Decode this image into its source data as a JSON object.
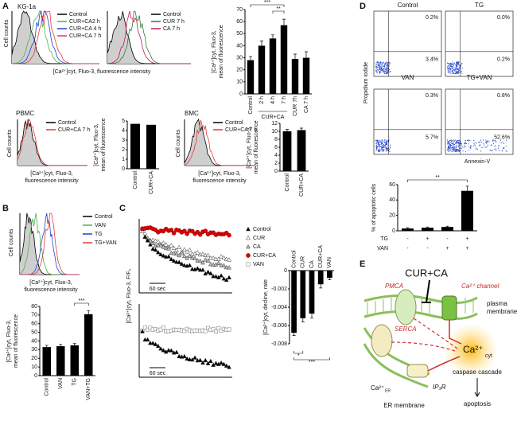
{
  "panels": {
    "A": {
      "label": "A",
      "cell_line": "KG-1a",
      "hist1_legend": [
        {
          "name": "Control",
          "color": "#000000"
        },
        {
          "name": "CUR+CA2 h",
          "color": "#4caf50"
        },
        {
          "name": "CUR+CA 4 h",
          "color": "#1f3fd0"
        },
        {
          "name": "CUR+CA 7 h",
          "color": "#e53935"
        }
      ],
      "hist2_legend": [
        {
          "name": "Control",
          "color": "#000000"
        },
        {
          "name": "CUR 7 h",
          "color": "#2e7d32"
        },
        {
          "name": "CA 7 h",
          "color": "#c2185b"
        }
      ],
      "y_label": "Cell counts",
      "x_label": "[Ca²⁺]cyt, Fluo-3, fluorescence intensity",
      "pbmc": {
        "title": "PBMC",
        "legend": [
          {
            "name": "Control",
            "color": "#000000"
          },
          {
            "name": "CUR+CA 7 h",
            "color": "#e53935"
          }
        ],
        "y_label": "Cell counts",
        "x_label": [
          "[Ca²⁺]cyt, Fluo-3,",
          "fluorescence intensity"
        ]
      },
      "bmc": {
        "title": "BMC",
        "legend": [
          {
            "name": "Control",
            "color": "#000000"
          },
          {
            "name": "CUR+CA 7 h",
            "color": "#e53935"
          }
        ],
        "y_label": "Cell counts",
        "x_label": [
          "[Ca²⁺]cyt, Fluo-3,",
          "fluorescence intensity"
        ]
      }
    },
    "B": {
      "label": "B",
      "legend": [
        {
          "name": "Control",
          "color": "#000000"
        },
        {
          "name": "VAN",
          "color": "#4caf50"
        },
        {
          "name": "TG",
          "color": "#1f3fd0"
        },
        {
          "name": "TG+VAN",
          "color": "#e53935"
        }
      ],
      "y_label": "Cell counts",
      "x_label": [
        "[Ca²⁺]cyt, Fluo-3,",
        "fluorescence intensity"
      ]
    },
    "C": {
      "label": "C",
      "legend": [
        {
          "name": "Control",
          "color": "#000000",
          "marker": "triangle-filled"
        },
        {
          "name": "CUR",
          "color": "#888888",
          "marker": "triangle-open"
        },
        {
          "name": "CA",
          "color": "#aaaaaa",
          "marker": "triangle-gray"
        },
        {
          "name": "CUR+CA",
          "color": "#e00000",
          "marker": "circle"
        },
        {
          "name": "VAN",
          "color": "#888888",
          "marker": "square-open"
        }
      ],
      "y_label": "[Ca²⁺]cyt, Fluo-3, F/F₀",
      "scale_label": "60 sec"
    },
    "D": {
      "label": "D",
      "plots": [
        {
          "title": "Control",
          "upper_right": "0.2%",
          "lower_right": "3.4%"
        },
        {
          "title": "TG",
          "upper_right": "0.0%",
          "lower_right": "0.2%"
        },
        {
          "title": "VAN",
          "upper_right": "0.3%",
          "lower_right": "5.7%"
        },
        {
          "title": "TG+VAN",
          "upper_right": "0.8%",
          "lower_right": "52.6%"
        }
      ],
      "y_label": "Propidium iodide",
      "x_label": "Annexin-V"
    },
    "E": {
      "label": "E",
      "drug": "CUR+CA",
      "pmca": "PMCA",
      "channel": "Ca²⁺ channel",
      "plasma_membrane": [
        "plasma",
        "membrane"
      ],
      "serca": "SERCA",
      "ca_cyt": "Ca²⁺",
      "cyt": "cyt",
      "caspase": "caspase cascade",
      "ca_er": "Ca²⁺",
      "er": "ER",
      "ip3r": "IP₃R",
      "er_membrane": "ER membrane",
      "apoptosis": "apoptosis"
    }
  },
  "chart_data": [
    {
      "type": "bar",
      "categories": [
        "Control",
        "2 h",
        "4 h",
        "7 h",
        "CUR 7h",
        "CA 7 h"
      ],
      "values": [
        28,
        40,
        46,
        57,
        29,
        30
      ],
      "errors": [
        3,
        4,
        3,
        5,
        4,
        5
      ],
      "color": "#000000",
      "ylim": [
        0,
        70
      ],
      "yticks": [
        0,
        10,
        20,
        30,
        40,
        50,
        60,
        70
      ],
      "ylabel": [
        "[Ca²⁺]cyt, Fluo-3,",
        "mean of fluorescence"
      ],
      "group_label": "CUR+CA",
      "annotations": [
        "***",
        "**"
      ]
    },
    {
      "type": "bar",
      "categories": [
        "Control",
        "CUR+CA"
      ],
      "values": [
        4.7,
        4.6
      ],
      "color": "#000000",
      "ylim": [
        0,
        5
      ],
      "yticks": [
        0,
        1,
        2,
        3,
        4,
        5
      ],
      "ylabel": [
        "[Ca²⁺]cyt, Fluo-3,",
        "mean of fluorescence"
      ]
    },
    {
      "type": "bar",
      "categories": [
        "Control",
        "CUR+CA"
      ],
      "values": [
        10,
        10.3
      ],
      "errors": [
        0.5,
        0.5
      ],
      "color": "#000000",
      "ylim": [
        0,
        12
      ],
      "yticks": [
        0,
        2,
        4,
        6,
        8,
        10,
        12
      ],
      "ylabel": [
        "[Ca²⁺]cyt, Fluo-3,",
        "mean of fluorescence"
      ]
    },
    {
      "type": "bar",
      "categories": [
        "Control",
        "VAN",
        "TG",
        "VAN+TG"
      ],
      "values": [
        33,
        34,
        35,
        71
      ],
      "errors": [
        2,
        2,
        2,
        4
      ],
      "color": "#000000",
      "ylim": [
        0,
        80
      ],
      "yticks": [
        0,
        10,
        20,
        30,
        40,
        50,
        60,
        70,
        80
      ],
      "ylabel": [
        "[Ca²⁺]cyt, Fluo-3,",
        "mean of fluorescence"
      ],
      "annotations": [
        "***"
      ]
    },
    {
      "type": "bar",
      "categories": [
        "Control",
        "CUR",
        "CA",
        "CUR+CA",
        "VAN"
      ],
      "values": [
        -0.0068,
        -0.0052,
        -0.0047,
        -0.0015,
        -0.0008
      ],
      "errors": [
        0.0003,
        0.0004,
        0.0005,
        0.0004,
        0.0002
      ],
      "color": "#000000",
      "ylim": [
        -0.008,
        0
      ],
      "yticks": [
        0,
        -0.002,
        -0.004,
        -0.006,
        -0.008
      ],
      "ylabel": [
        "[Ca²⁺]cyt, decline, rate"
      ],
      "annotations": [
        "*",
        "***"
      ]
    },
    {
      "type": "bar",
      "categories": [
        null,
        null,
        null,
        null
      ],
      "values": [
        3,
        4,
        5,
        52
      ],
      "errors": [
        1,
        1,
        1,
        6
      ],
      "color": "#000000",
      "ylim": [
        0,
        60
      ],
      "yticks": [
        0,
        20,
        40,
        60
      ],
      "ylabel": [
        "% of apoptotic cells"
      ],
      "annotations": [
        "**"
      ],
      "rows": [
        {
          "name": "TG",
          "signs": [
            "-",
            "+",
            "-",
            "+"
          ]
        },
        {
          "name": "VAN",
          "signs": [
            "-",
            "-",
            "+",
            "+"
          ]
        }
      ]
    }
  ]
}
